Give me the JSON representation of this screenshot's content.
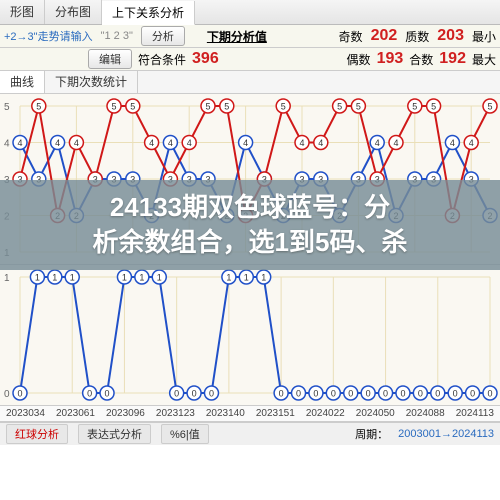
{
  "tabs_top": [
    "形图",
    "分布图",
    "上下关系分析"
  ],
  "tabs_top_active": 2,
  "hint_row": {
    "trend_text": "+2→3\"走势请输入",
    "quoted": "\"1 2 3\"",
    "btn_analyze": "分析",
    "btn_edit": "编辑",
    "next_label": "下期分析值",
    "match_label": "符合条件",
    "match_value": 396,
    "stats": [
      {
        "label": "奇数",
        "value": 202,
        "color": "#d02020"
      },
      {
        "label": "偶数",
        "value": 193,
        "color": "#d02020"
      },
      {
        "label": "质数",
        "value": 203,
        "color": "#d02020"
      },
      {
        "label": "合数",
        "value": 192,
        "color": "#d02020"
      }
    ],
    "small_label_1": "最小",
    "small_label_2": "最大"
  },
  "sub_tabs": [
    "曲线",
    "下期次数统计"
  ],
  "sub_tabs_active": 0,
  "chart_top": {
    "height": 170,
    "y_levels": [
      1,
      2,
      3,
      4,
      5
    ],
    "bg": "#faf8f2",
    "grid": "#eadfb8",
    "line_red": "#d01818",
    "line_blue": "#2050c8",
    "node_fill": "#fff",
    "node_stroke_red": "#d01818",
    "data": [
      3,
      5,
      2,
      4,
      3,
      5,
      5,
      4,
      3,
      4,
      5,
      5,
      2,
      3,
      5,
      4,
      4,
      5,
      5,
      3,
      4,
      5,
      5,
      2,
      4,
      5
    ],
    "data2": [
      4,
      3,
      4,
      2,
      3,
      3,
      3,
      2,
      4,
      3,
      3,
      2,
      4,
      3,
      2,
      3,
      3,
      2,
      3,
      4,
      2,
      3,
      3,
      4,
      3,
      2
    ]
  },
  "chart_bottom": {
    "height": 140,
    "y_levels": [
      0,
      1
    ],
    "bg": "#faf8f2",
    "grid": "#eadfb8",
    "line_blue": "#2050c8",
    "node_fill": "#fff",
    "node_stroke": "#2050c8",
    "data": [
      0,
      1,
      1,
      1,
      0,
      0,
      1,
      1,
      1,
      0,
      0,
      0,
      1,
      1,
      1,
      0,
      0,
      0,
      0,
      0,
      0,
      0,
      0,
      0,
      0,
      0,
      0,
      0
    ]
  },
  "x_ticks": [
    "2023034",
    "2023061",
    "2023096",
    "2023123",
    "2023140",
    "2023151",
    "2024022",
    "2024050",
    "2024088",
    "2024113"
  ],
  "overlay_title_1": "24133期双色球蓝号：分",
  "overlay_title_2": "析余数组合，选1到5码、杀",
  "bottom_bar": {
    "tabs": [
      "红球分析",
      "表达式分析",
      "%6|值"
    ],
    "period_label": "周期：",
    "period_value": "2003001→2024113"
  },
  "colors": {
    "red": "#d02020",
    "link": "#2a6bbf"
  }
}
